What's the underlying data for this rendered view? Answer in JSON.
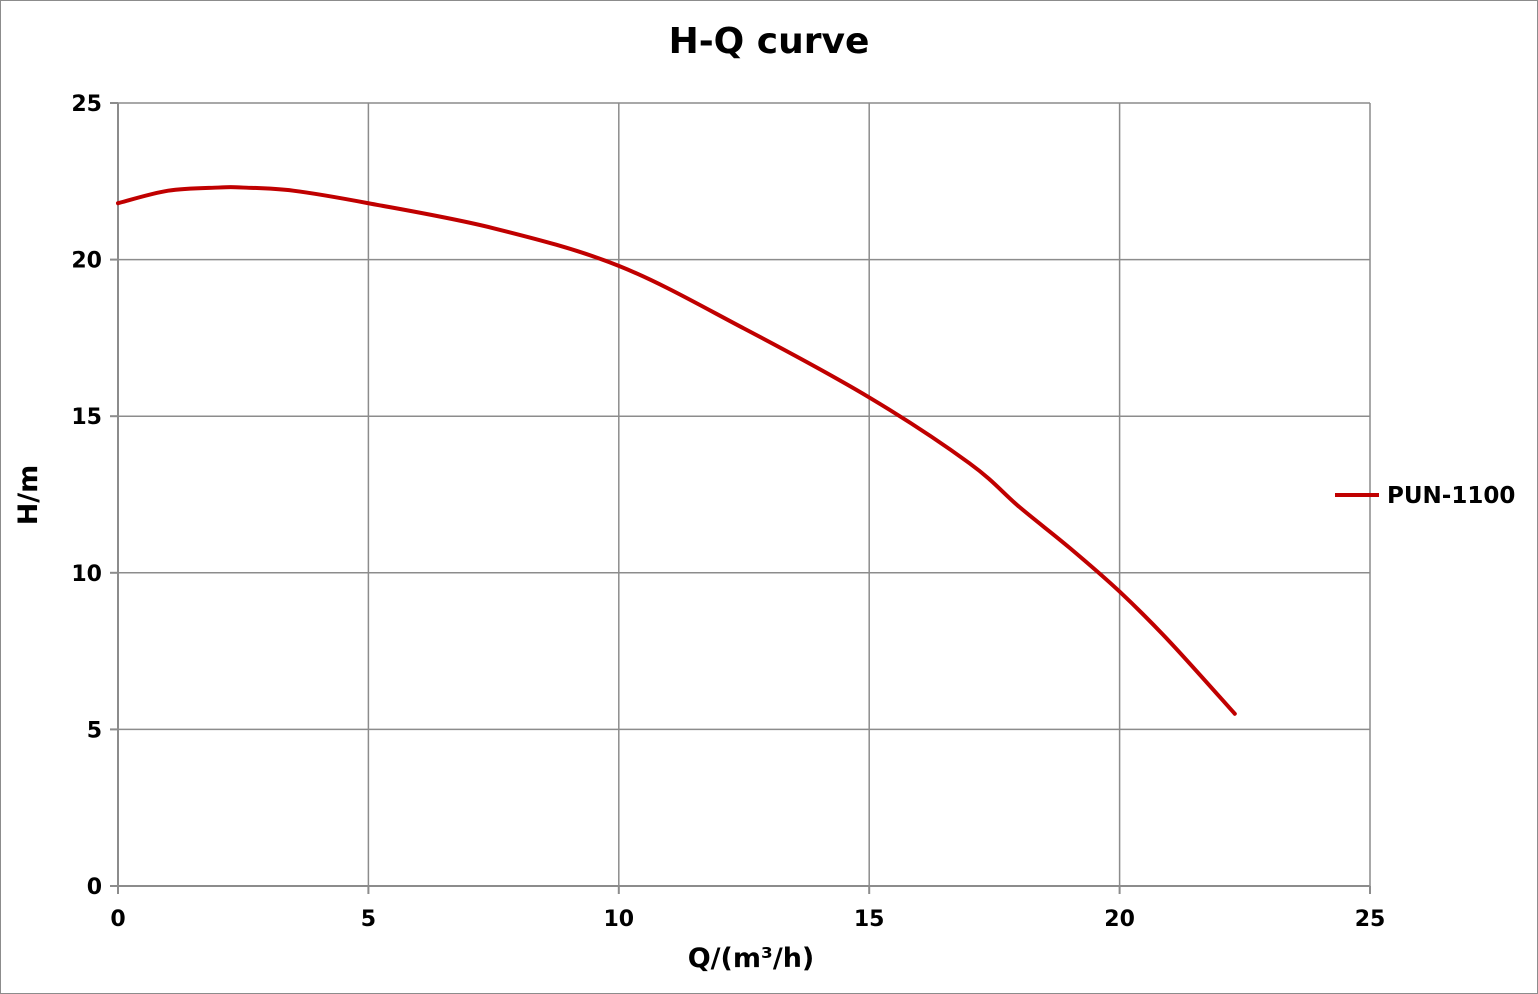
{
  "chart_data": {
    "type": "line",
    "title": "H-Q  curve",
    "xlabel": "Q/(m³/h)",
    "ylabel": "H/m",
    "xlim": [
      0,
      25
    ],
    "ylim": [
      0,
      25
    ],
    "xticks": [
      "0",
      "5",
      "10",
      "15",
      "20",
      "25"
    ],
    "yticks": [
      "0",
      "5",
      "10",
      "15",
      "20",
      "25"
    ],
    "grid": true,
    "legend_position": "right",
    "series": [
      {
        "name": "PUN-1100",
        "color": "#c00000",
        "x": [
          0,
          1,
          2,
          2.5,
          3.5,
          5,
          7.5,
          10,
          12.5,
          15,
          17,
          18,
          19,
          20,
          21,
          22.3
        ],
        "y": [
          21.8,
          22.2,
          22.3,
          22.3,
          22.2,
          21.8,
          21.0,
          19.8,
          17.8,
          15.6,
          13.5,
          12.1,
          10.8,
          9.4,
          7.8,
          5.5
        ]
      }
    ]
  }
}
